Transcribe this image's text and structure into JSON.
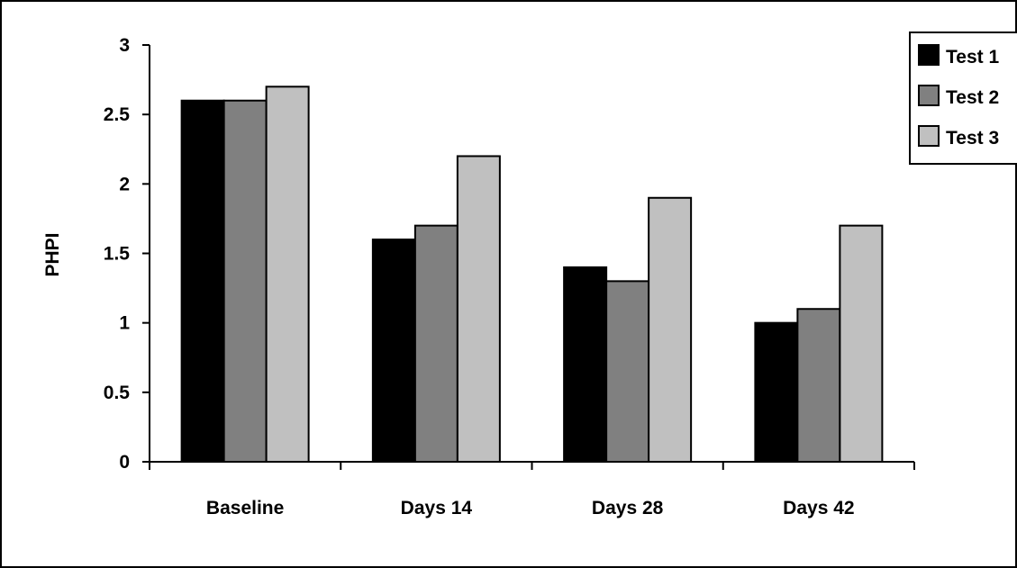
{
  "chart_data": {
    "type": "bar",
    "title": "",
    "xlabel": "",
    "ylabel": "PHPI",
    "categories": [
      "Baseline",
      "Days 14",
      "Days 28",
      "Days 42"
    ],
    "series": [
      {
        "name": "Test 1",
        "color": "#000000",
        "values": [
          2.6,
          1.6,
          1.4,
          1.0
        ]
      },
      {
        "name": "Test 2",
        "color": "#808080",
        "values": [
          2.6,
          1.7,
          1.3,
          1.1
        ]
      },
      {
        "name": "Test 3",
        "color": "#c0c0c0",
        "values": [
          2.7,
          2.2,
          1.9,
          1.7
        ]
      }
    ],
    "ylim": [
      0,
      3
    ],
    "yticks": [
      0,
      0.5,
      1,
      1.5,
      2,
      2.5,
      3
    ],
    "ytick_labels": [
      "0",
      "0.5",
      "1",
      "1.5",
      "2",
      "2.5",
      "3"
    ],
    "grid": false,
    "legend_position": "top-right"
  }
}
